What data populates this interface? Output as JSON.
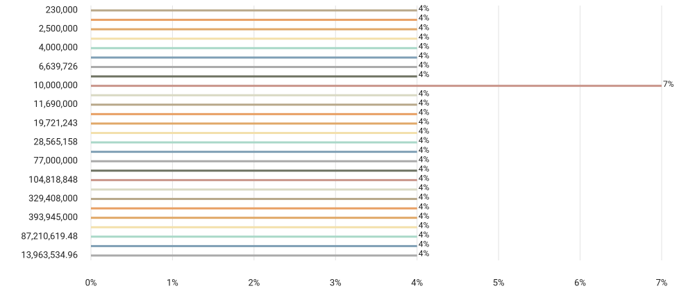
{
  "chart_data": {
    "type": "hbar",
    "categories": [
      "230,000",
      null,
      "2,500,000",
      null,
      "4,000,000",
      null,
      "6,639,726",
      null,
      "10,000,000",
      null,
      "11,690,000",
      null,
      "19,721,243",
      null,
      "28,565,158",
      null,
      "77,000,000",
      null,
      "104,818,848",
      null,
      "329,408,000",
      null,
      "393,945,000",
      null,
      "87,210,619.48",
      null,
      "13,963,534.96"
    ],
    "values": [
      4,
      4,
      4,
      4,
      4,
      4,
      4,
      4,
      7,
      4,
      4,
      4,
      4,
      4,
      4,
      4,
      4,
      4,
      4,
      4,
      4,
      4,
      4,
      4,
      4,
      4,
      4
    ],
    "value_labels": [
      "4%",
      "4%",
      "4%",
      "4%",
      "4%",
      "4%",
      "4%",
      "4%",
      "7%",
      "4%",
      "4%",
      "4%",
      "4%",
      "4%",
      "4%",
      "4%",
      "4%",
      "4%",
      "4%",
      "4%",
      "4%",
      "4%",
      "4%",
      "4%",
      "4%",
      "4%",
      "4%"
    ],
    "colors": [
      "#b8a88a",
      "#e8a064",
      "#e0a868",
      "#f3e0ac",
      "#a9d8c8",
      "#7f9fb5",
      "#aaaaaa",
      "#6e7262",
      "#c9958a",
      "#d9d9c3",
      "#b8a88a",
      "#e8a064",
      "#e0a868",
      "#f3e0ac",
      "#a9d8c8",
      "#7f9fb5",
      "#aaaaaa",
      "#6e7262",
      "#c9958a",
      "#d9d9c3",
      "#b8a88a",
      "#e8a064",
      "#e0a868",
      "#f3e0ac",
      "#a9d8c8",
      "#7f9fb5",
      "#aaaaaa"
    ],
    "xlim": [
      0,
      7
    ],
    "xticks": [
      {
        "value": 0,
        "label": "0%"
      },
      {
        "value": 1,
        "label": "1%"
      },
      {
        "value": 2,
        "label": "2%"
      },
      {
        "value": 3,
        "label": "3%"
      },
      {
        "value": 4,
        "label": "4%"
      },
      {
        "value": 5,
        "label": "5%"
      },
      {
        "value": 6,
        "label": "6%"
      },
      {
        "value": 7,
        "label": "7%"
      }
    ],
    "grid": true
  }
}
